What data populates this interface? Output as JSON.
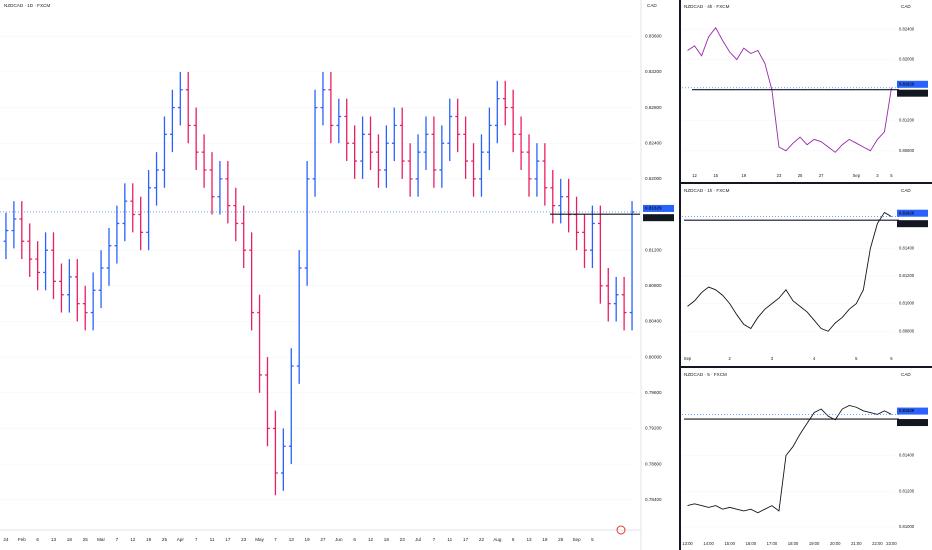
{
  "chart_data": [
    {
      "type": "ohlc",
      "title": "NZDCAD · 1D · FXCM",
      "currency": "CAD",
      "up_color": "#2962ff",
      "down_color": "#e91e63",
      "categories": [
        "24",
        null,
        "Feb",
        null,
        "6",
        null,
        "13",
        null,
        "18",
        null,
        "25",
        null,
        "Mar",
        null,
        "7",
        null,
        "12",
        null,
        "19",
        null,
        "25",
        null,
        "Apr",
        null,
        "7",
        null,
        "11",
        null,
        "17",
        null,
        "23",
        null,
        "May",
        null,
        "7",
        null,
        "13",
        null,
        "19",
        null,
        "27",
        null,
        "Jun",
        null,
        "6",
        null,
        "12",
        null,
        "18",
        null,
        "23",
        null,
        "Jul",
        null,
        "7",
        null,
        "11",
        null,
        "17",
        null,
        "22",
        null,
        "Aug",
        null,
        "6",
        null,
        "13",
        null,
        "19",
        null,
        "25",
        null,
        "Sep",
        null,
        "5",
        null,
        null,
        null,
        null,
        null
      ],
      "open": [
        0.813,
        0.8142,
        0.8155,
        0.813,
        0.811,
        0.8095,
        0.812,
        0.8085,
        0.807,
        0.809,
        0.806,
        0.805,
        0.8075,
        0.81,
        0.8125,
        0.815,
        0.8175,
        0.816,
        0.814,
        0.819,
        0.821,
        0.825,
        0.828,
        0.83,
        0.826,
        0.823,
        0.821,
        0.818,
        0.82,
        0.817,
        0.815,
        0.812,
        0.805,
        0.798,
        0.792,
        0.787,
        0.79,
        0.799,
        0.81,
        0.82,
        0.828,
        0.83,
        0.826,
        0.827,
        0.824,
        0.822,
        0.825,
        0.823,
        0.821,
        0.824,
        0.826,
        0.822,
        0.82,
        0.823,
        0.825,
        0.821,
        0.824,
        0.827,
        0.825,
        0.822,
        0.82,
        0.823,
        0.826,
        0.829,
        0.828,
        0.825,
        0.823,
        0.82,
        0.822,
        0.819,
        0.817,
        0.818,
        0.816,
        0.814,
        0.812,
        0.815,
        0.808,
        0.806,
        0.807,
        0.805
      ],
      "high": [
        0.8162,
        0.8175,
        0.8175,
        0.815,
        0.813,
        0.814,
        0.814,
        0.8105,
        0.811,
        0.811,
        0.808,
        0.8095,
        0.812,
        0.8145,
        0.817,
        0.8195,
        0.8195,
        0.818,
        0.821,
        0.823,
        0.827,
        0.83,
        0.832,
        0.832,
        0.828,
        0.825,
        0.823,
        0.822,
        0.822,
        0.819,
        0.817,
        0.814,
        0.807,
        0.8,
        0.794,
        0.792,
        0.801,
        0.812,
        0.822,
        0.83,
        0.832,
        0.832,
        0.829,
        0.829,
        0.826,
        0.827,
        0.827,
        0.825,
        0.826,
        0.828,
        0.828,
        0.824,
        0.825,
        0.827,
        0.827,
        0.826,
        0.829,
        0.829,
        0.827,
        0.824,
        0.825,
        0.828,
        0.831,
        0.831,
        0.83,
        0.827,
        0.825,
        0.824,
        0.824,
        0.821,
        0.82,
        0.82,
        0.818,
        0.816,
        0.817,
        0.817,
        0.81,
        0.809,
        0.809,
        0.8175
      ],
      "low": [
        0.811,
        0.8122,
        0.811,
        0.809,
        0.8075,
        0.8075,
        0.8065,
        0.805,
        0.805,
        0.804,
        0.803,
        0.803,
        0.8055,
        0.808,
        0.8105,
        0.813,
        0.814,
        0.812,
        0.812,
        0.817,
        0.819,
        0.823,
        0.826,
        0.824,
        0.821,
        0.819,
        0.816,
        0.816,
        0.815,
        0.813,
        0.81,
        0.803,
        0.796,
        0.79,
        0.7845,
        0.785,
        0.788,
        0.797,
        0.808,
        0.818,
        0.826,
        0.824,
        0.824,
        0.822,
        0.82,
        0.82,
        0.821,
        0.819,
        0.819,
        0.822,
        0.82,
        0.818,
        0.818,
        0.821,
        0.819,
        0.819,
        0.822,
        0.823,
        0.82,
        0.818,
        0.818,
        0.821,
        0.824,
        0.826,
        0.823,
        0.821,
        0.818,
        0.818,
        0.817,
        0.815,
        0.815,
        0.814,
        0.812,
        0.81,
        0.81,
        0.806,
        0.804,
        0.804,
        0.803,
        0.803
      ],
      "close": [
        0.8142,
        0.8155,
        0.813,
        0.811,
        0.8095,
        0.812,
        0.8085,
        0.807,
        0.809,
        0.806,
        0.805,
        0.8075,
        0.81,
        0.8125,
        0.815,
        0.8175,
        0.816,
        0.814,
        0.819,
        0.821,
        0.825,
        0.828,
        0.83,
        0.826,
        0.823,
        0.821,
        0.818,
        0.82,
        0.817,
        0.815,
        0.812,
        0.805,
        0.798,
        0.792,
        0.787,
        0.79,
        0.799,
        0.81,
        0.82,
        0.828,
        0.83,
        0.826,
        0.827,
        0.824,
        0.822,
        0.825,
        0.823,
        0.821,
        0.824,
        0.826,
        0.822,
        0.82,
        0.823,
        0.825,
        0.821,
        0.824,
        0.827,
        0.825,
        0.822,
        0.82,
        0.823,
        0.826,
        0.829,
        0.828,
        0.825,
        0.823,
        0.82,
        0.822,
        0.819,
        0.817,
        0.818,
        0.816,
        0.814,
        0.812,
        0.815,
        0.808,
        0.806,
        0.807,
        0.805,
        0.81629
      ],
      "ylim": [
        0.7815,
        0.8385
      ],
      "yticks": [
        {
          "value": 0.784,
          "label": "0.78400"
        },
        {
          "value": 0.788,
          "label": "0.78800"
        },
        {
          "value": 0.792,
          "label": "0.79200"
        },
        {
          "value": 0.796,
          "label": "0.79600"
        },
        {
          "value": 0.8,
          "label": "0.80000"
        },
        {
          "value": 0.804,
          "label": "0.80400"
        },
        {
          "value": 0.808,
          "label": "0.80800"
        },
        {
          "value": 0.812,
          "label": "0.81200"
        },
        {
          "value": 0.82,
          "label": "0.82000"
        },
        {
          "value": 0.824,
          "label": "0.82400"
        },
        {
          "value": 0.828,
          "label": "0.82800"
        },
        {
          "value": 0.832,
          "label": "0.83200"
        },
        {
          "value": 0.836,
          "label": "0.83600"
        }
      ],
      "price_lines": [
        {
          "value": 0.81629,
          "label": "0.81629",
          "color": "#2962ff"
        },
        {
          "value": 0.81604,
          "label": "0.81604",
          "color": "#131722"
        }
      ]
    },
    {
      "type": "line",
      "title": "NZDCAD · 4h · FXCM",
      "currency": "CAD",
      "color": "#9c27b0",
      "categories": [
        null,
        "12",
        null,
        null,
        "15",
        null,
        null,
        null,
        "19",
        null,
        null,
        null,
        null,
        "23",
        null,
        null,
        "25",
        null,
        null,
        "27",
        null,
        null,
        null,
        null,
        "Sep",
        null,
        null,
        "3",
        null,
        "5"
      ],
      "values": [
        0.8212,
        0.8218,
        0.8205,
        0.823,
        0.8242,
        0.8225,
        0.821,
        0.82,
        0.8215,
        0.8208,
        0.8212,
        0.8195,
        0.816,
        0.8085,
        0.808,
        0.809,
        0.8098,
        0.8088,
        0.8095,
        0.8092,
        0.8085,
        0.8078,
        0.8088,
        0.8095,
        0.809,
        0.8085,
        0.808,
        0.8095,
        0.8105,
        0.8163
      ],
      "ylim": [
        0.806,
        0.826
      ],
      "yticks": [
        {
          "value": 0.808,
          "label": "0.80800"
        },
        {
          "value": 0.812,
          "label": "0.81200"
        },
        {
          "value": 0.82,
          "label": "0.82000"
        },
        {
          "value": 0.824,
          "label": "0.82400"
        }
      ],
      "price_lines": [
        {
          "value": 0.81629,
          "label": "0.81629",
          "color": "#2962ff"
        },
        {
          "value": 0.81604,
          "label": "0.81604",
          "color": "#131722"
        }
      ]
    },
    {
      "type": "line",
      "title": "NZDCAD · 1h · FXCM",
      "currency": "CAD",
      "color": "#131722",
      "categories": [
        "Sep",
        null,
        null,
        null,
        null,
        null,
        "2",
        null,
        null,
        null,
        null,
        null,
        "3",
        null,
        null,
        null,
        null,
        null,
        "4",
        null,
        null,
        null,
        null,
        null,
        "5",
        null,
        null,
        null,
        null,
        "6"
      ],
      "values": [
        0.8098,
        0.8102,
        0.8108,
        0.8112,
        0.811,
        0.8106,
        0.81,
        0.8092,
        0.8085,
        0.8082,
        0.809,
        0.8096,
        0.81,
        0.8104,
        0.811,
        0.8102,
        0.8098,
        0.8094,
        0.8088,
        0.8082,
        0.808,
        0.8086,
        0.809,
        0.8096,
        0.81,
        0.811,
        0.814,
        0.8158,
        0.8166,
        0.8163
      ],
      "ylim": [
        0.8065,
        0.8175
      ],
      "yticks": [
        {
          "value": 0.808,
          "label": "0.80800"
        },
        {
          "value": 0.81,
          "label": "0.81000"
        },
        {
          "value": 0.812,
          "label": "0.81200"
        },
        {
          "value": 0.814,
          "label": "0.81400"
        }
      ],
      "price_lines": [
        {
          "value": 0.81629,
          "label": "0.81629",
          "color": "#2962ff"
        },
        {
          "value": 0.81604,
          "label": "0.81604",
          "color": "#131722"
        }
      ]
    },
    {
      "type": "line",
      "title": "NZDCAD · 5 · FXCM",
      "currency": "CAD",
      "color": "#131722",
      "categories": [
        "13:00",
        null,
        null,
        "14:00",
        null,
        null,
        "15:00",
        null,
        null,
        "16:00",
        null,
        null,
        "17:00",
        null,
        null,
        "18:00",
        null,
        null,
        "19:00",
        null,
        null,
        "20:00",
        null,
        null,
        "21:00",
        null,
        null,
        "22:00",
        null,
        "23:00"
      ],
      "values": [
        0.8112,
        0.8113,
        0.8112,
        0.8111,
        0.8112,
        0.811,
        0.8111,
        0.811,
        0.8109,
        0.811,
        0.8108,
        0.811,
        0.8112,
        0.8109,
        0.814,
        0.8145,
        0.8152,
        0.8158,
        0.8164,
        0.8166,
        0.8162,
        0.816,
        0.8166,
        0.8168,
        0.8167,
        0.8165,
        0.8164,
        0.8163,
        0.8165,
        0.8163
      ],
      "ylim": [
        0.8095,
        0.818
      ],
      "yticks": [
        {
          "value": 0.81,
          "label": "0.81000"
        },
        {
          "value": 0.812,
          "label": "0.81200"
        },
        {
          "value": 0.814,
          "label": "0.81400"
        }
      ],
      "price_lines": [
        {
          "value": 0.81629,
          "label": "0.81629",
          "color": "#2962ff"
        },
        {
          "value": 0.81604,
          "label": "0.81604",
          "color": "#131722"
        }
      ]
    }
  ]
}
